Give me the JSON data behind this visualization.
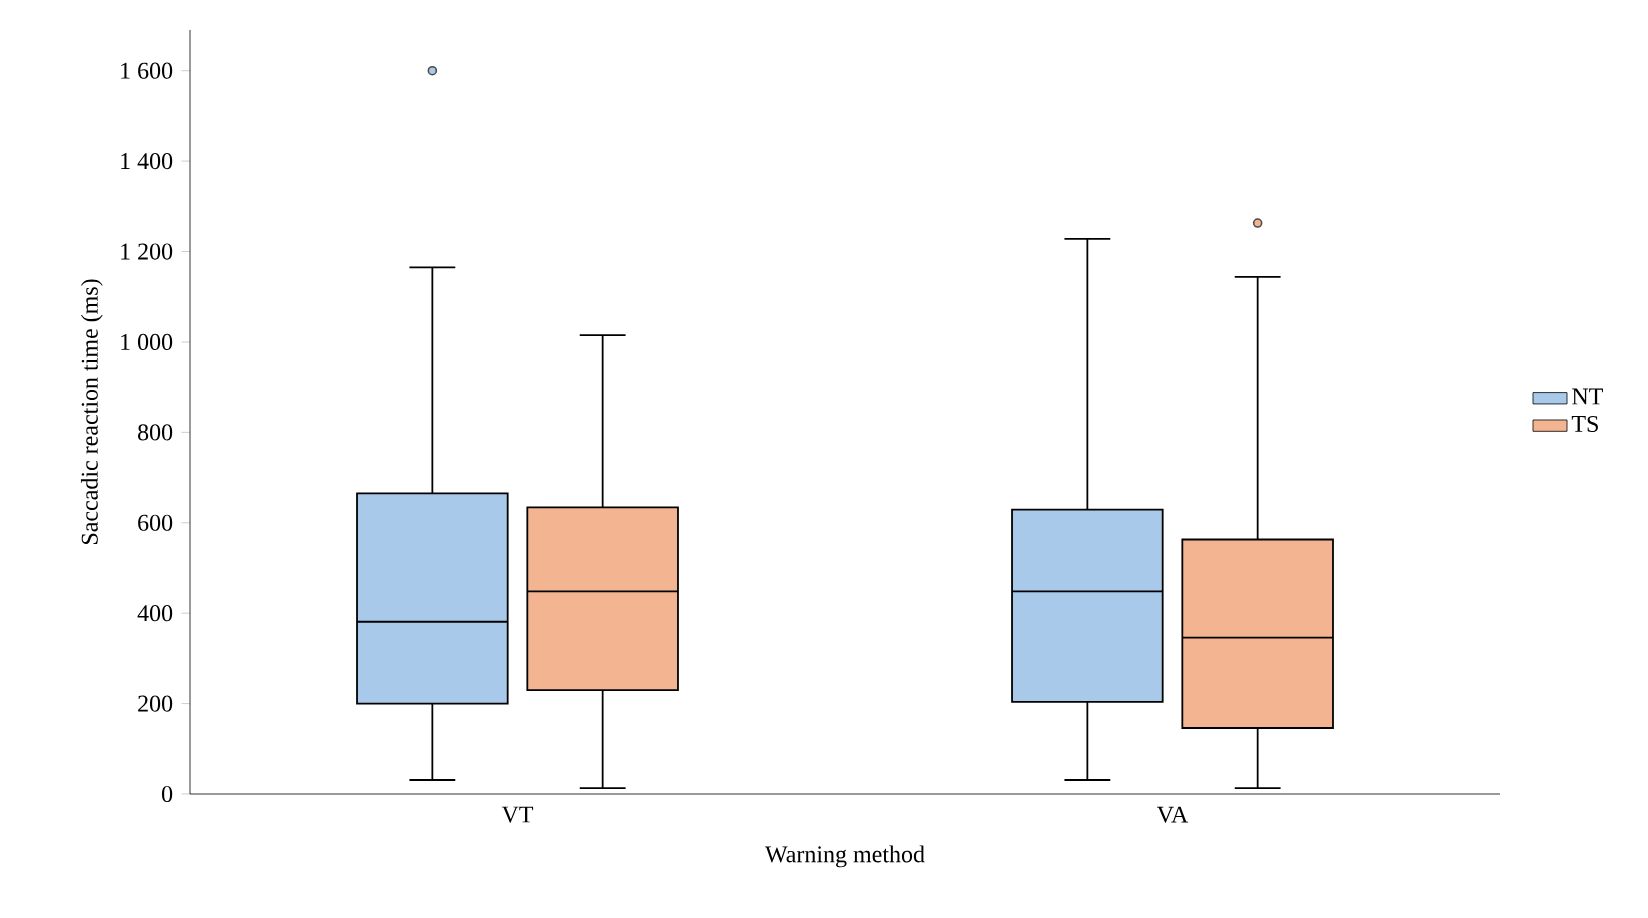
{
  "chart_data": {
    "type": "box",
    "xlabel": "Warning method",
    "ylabel": "Saccadic reaction time (ms)",
    "categories": [
      "VT",
      "VA"
    ],
    "series": [
      {
        "name": "NT",
        "color": "#a9c9ea",
        "boxes": [
          {
            "low": 31,
            "q1": 200,
            "median": 381,
            "q3": 665,
            "high": 1165,
            "outliers": [
              1600
            ]
          },
          {
            "low": 31,
            "q1": 204,
            "median": 448,
            "q3": 629,
            "high": 1228
          }
        ]
      },
      {
        "name": "TS",
        "color": "#f2b491",
        "boxes": [
          {
            "low": 13,
            "q1": 230,
            "median": 448,
            "q3": 634,
            "high": 1015
          },
          {
            "low": 13,
            "q1": 146,
            "median": 346,
            "q3": 563,
            "high": 1144,
            "outliers": [
              1263
            ]
          }
        ]
      }
    ],
    "ylim": [
      0,
      1690
    ],
    "yticks": [
      0,
      200,
      400,
      600,
      800,
      {
        "value": 1000,
        "label": "1 000"
      },
      {
        "value": 1200,
        "label": "1 200"
      },
      {
        "value": 1400,
        "label": "1 400"
      },
      {
        "value": 1600,
        "label": "1 600"
      }
    ],
    "legend": "right",
    "grid": false
  }
}
